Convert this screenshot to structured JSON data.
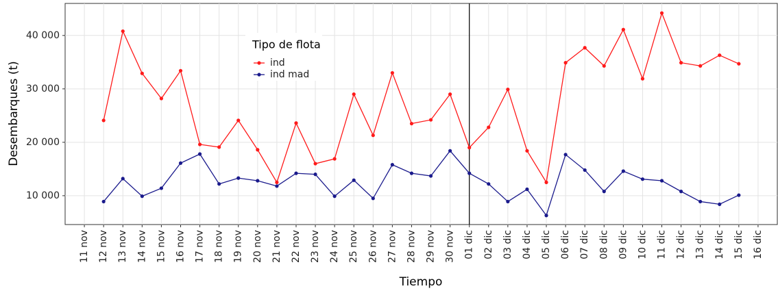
{
  "chart_data": {
    "type": "line",
    "x_label": "Tiempo",
    "y_label": "Desembarques (t)",
    "legend_title": "Tipo de flota",
    "categories": [
      "11 nov",
      "12 nov",
      "13 nov",
      "14 nov",
      "15 nov",
      "16 nov",
      "17 nov",
      "18 nov",
      "19 nov",
      "20 nov",
      "21 nov",
      "22 nov",
      "23 nov",
      "24 nov",
      "25 nov",
      "26 nov",
      "27 nov",
      "28 nov",
      "29 nov",
      "30 nov",
      "01 dic",
      "02 dic",
      "03 dic",
      "04 dic",
      "05 dic",
      "06 dic",
      "07 dic",
      "08 dic",
      "09 dic",
      "10 dic",
      "11 dic",
      "12 dic",
      "13 dic",
      "14 dic",
      "15 dic",
      "16 dic"
    ],
    "series": [
      {
        "name": "ind",
        "color": "#ff1a1a",
        "values": [
          null,
          24100,
          40800,
          32900,
          28200,
          33400,
          19600,
          19100,
          24100,
          18600,
          12500,
          23600,
          16000,
          16900,
          29000,
          21300,
          33000,
          23500,
          24200,
          29000,
          19000,
          22800,
          29900,
          18400,
          12500,
          34900,
          37700,
          34300,
          41100,
          31900,
          44200,
          34900,
          34300,
          36300,
          34700,
          null
        ]
      },
      {
        "name": "ind mad",
        "color": "#1a1a8c",
        "values": [
          null,
          8900,
          13200,
          9900,
          11400,
          16100,
          17800,
          12200,
          13300,
          12800,
          11800,
          14200,
          14000,
          9900,
          12900,
          9500,
          15800,
          14200,
          13700,
          18400,
          14200,
          12200,
          8900,
          11200,
          6300,
          17700,
          14800,
          10800,
          14600,
          13100,
          12800,
          10800,
          8900,
          8400,
          10100,
          null
        ]
      }
    ],
    "ylim": [
      4600,
      46000
    ],
    "yticks": [
      {
        "value": 10000,
        "label": "10 000"
      },
      {
        "value": 20000,
        "label": "20 000"
      },
      {
        "value": 30000,
        "label": "30 000"
      },
      {
        "value": 40000,
        "label": "40 000"
      }
    ],
    "grid": true,
    "vline_category": "01 dic"
  }
}
